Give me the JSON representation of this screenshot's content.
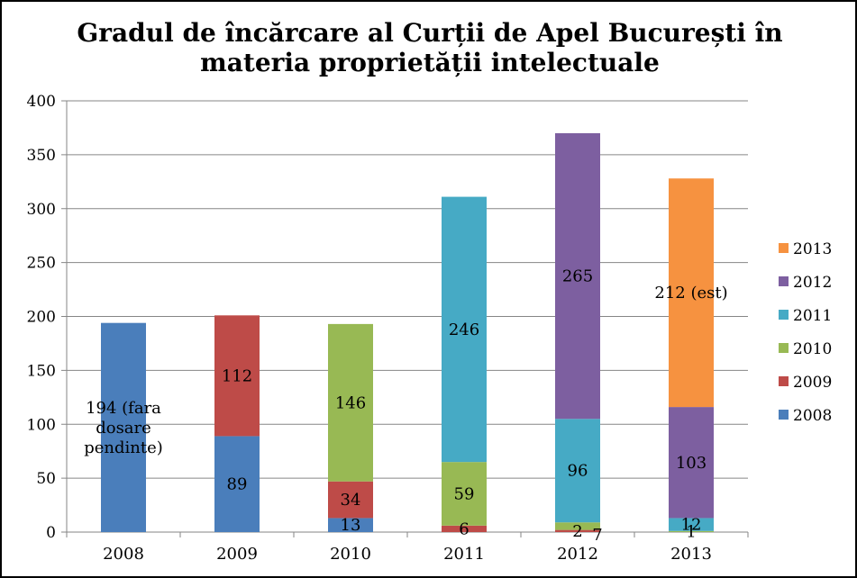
{
  "chart_data": {
    "type": "bar",
    "stacked": true,
    "title": "Gradul de încărcare al Curții de Apel București în materia proprietății intelectuale",
    "categories": [
      "2008",
      "2009",
      "2010",
      "2011",
      "2012",
      "2013"
    ],
    "ylim": [
      0,
      400
    ],
    "yticks": [
      0,
      50,
      100,
      150,
      200,
      250,
      300,
      350,
      400
    ],
    "grid": true,
    "legend_position": "right",
    "series": [
      {
        "name": "2008",
        "color": "#4A7EBB",
        "values": [
          194,
          89,
          13,
          0,
          0,
          0
        ],
        "labels": [
          "194 (fara dosare pendinte)",
          "89",
          "13",
          "",
          "",
          ""
        ]
      },
      {
        "name": "2009",
        "color": "#BE4B48",
        "values": [
          0,
          112,
          34,
          6,
          2,
          0
        ],
        "labels": [
          "",
          "112",
          "34",
          "6",
          "2",
          ""
        ]
      },
      {
        "name": "2010",
        "color": "#98B954",
        "values": [
          0,
          0,
          146,
          59,
          7,
          1
        ],
        "labels": [
          "",
          "",
          "146",
          "59",
          "7",
          "1"
        ]
      },
      {
        "name": "2011",
        "color": "#46AAC5",
        "values": [
          0,
          0,
          0,
          246,
          96,
          12
        ],
        "labels": [
          "",
          "",
          "",
          "246",
          "96",
          "12"
        ]
      },
      {
        "name": "2012",
        "color": "#7D5FA0",
        "values": [
          0,
          0,
          0,
          0,
          265,
          103
        ],
        "labels": [
          "",
          "",
          "",
          "",
          "265",
          "103"
        ]
      },
      {
        "name": "2013",
        "color": "#F69240",
        "values": [
          0,
          0,
          0,
          0,
          0,
          212
        ],
        "labels": [
          "",
          "",
          "",
          "",
          "",
          "212 (est)"
        ]
      }
    ]
  }
}
